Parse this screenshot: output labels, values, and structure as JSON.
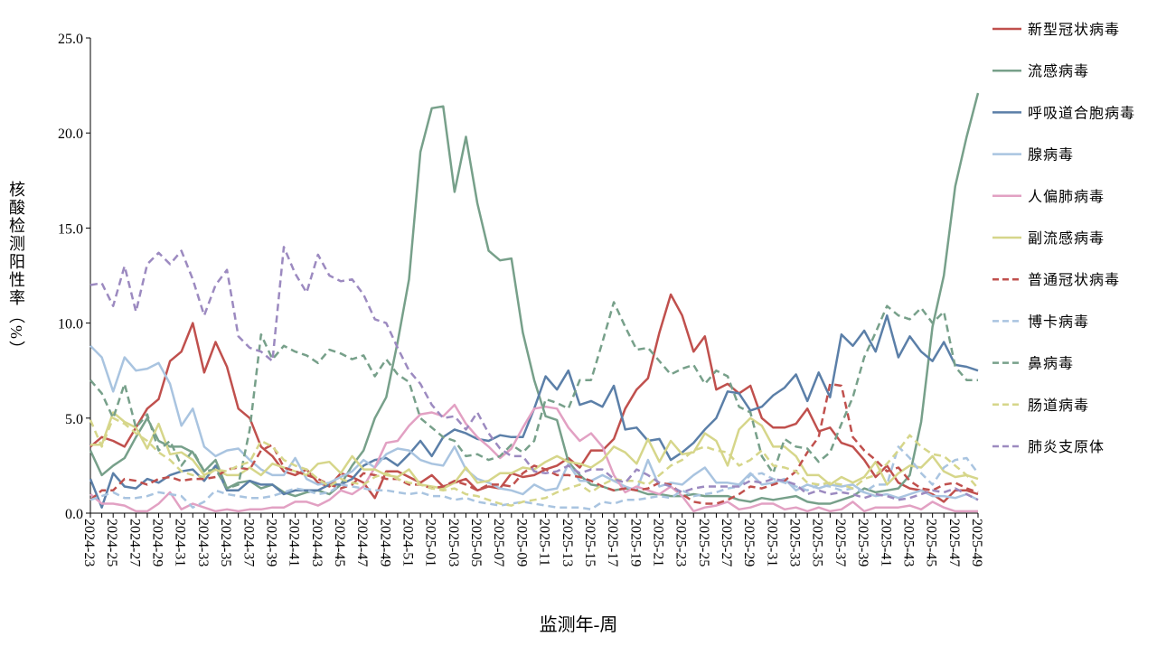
{
  "chart_data": {
    "type": "line",
    "x_label": "监测年-周",
    "y_label": "核酸检测阳性率（%）",
    "categories": [
      "2024-23",
      null,
      "2024-25",
      null,
      "2024-27",
      null,
      "2024-29",
      null,
      "2024-31",
      null,
      "2024-33",
      null,
      "2024-35",
      null,
      "2024-37",
      null,
      "2024-39",
      null,
      "2024-41",
      null,
      "2024-43",
      null,
      "2024-45",
      null,
      "2024-47",
      null,
      "2024-49",
      null,
      "2024-51",
      null,
      "2025-01",
      null,
      "2025-03",
      null,
      "2025-05",
      null,
      "2025-07",
      null,
      "2025-09",
      null,
      "2025-11",
      null,
      "2025-13",
      null,
      "2025-15",
      null,
      "2025-17",
      null,
      "2025-19",
      null,
      "2025-21",
      null,
      "2025-23",
      null,
      "2025-25",
      null,
      "2025-27",
      null,
      "2025-29",
      null,
      "2025-31",
      null,
      "2025-33",
      null,
      "2025-35",
      null,
      "2025-37",
      null,
      "2025-39",
      null,
      "2025-41",
      null,
      "2025-43",
      null,
      "2025-45",
      null,
      "2025-47",
      null,
      "2025-49"
    ],
    "ylim": [
      0,
      25
    ],
    "yticks": [
      {
        "value": 0,
        "label": "0.0"
      },
      {
        "value": 5,
        "label": "5.0"
      },
      {
        "value": 10,
        "label": "10.0"
      },
      {
        "value": 15,
        "label": "15.0"
      },
      {
        "value": 20,
        "label": "20.0"
      },
      {
        "value": 25,
        "label": "25.0"
      }
    ],
    "legend": "right",
    "series": [
      {
        "name": "新型冠状病毒",
        "color": "#c0504d",
        "dashed": false,
        "values": [
          3.5,
          4,
          3.8,
          3.5,
          4.5,
          5.5,
          6,
          8,
          8.5,
          10,
          7.4,
          9,
          7.7,
          5.5,
          5,
          3.5,
          3,
          2.2,
          2,
          2.3,
          1.6,
          1.4,
          2.1,
          1.9,
          1.6,
          0.8,
          2.2,
          2.2,
          1.9,
          1.6,
          2,
          1.4,
          1.6,
          1.8,
          1.2,
          1.4,
          1.3,
          2.1,
          1.9,
          2,
          2.3,
          2.5,
          2.9,
          2.4,
          3.3,
          3.3,
          3.9,
          5.5,
          6.5,
          7.1,
          9.5,
          11.5,
          10.4,
          8.5,
          9.3,
          6.5,
          6.8,
          6.3,
          6.7,
          5,
          4.5,
          4.5,
          4.7,
          5.5,
          4.3,
          4.5,
          3.7,
          3.5,
          2.8,
          1.9,
          2.5,
          1.6,
          1.3,
          1.2,
          1,
          0.6,
          1.2,
          1.2,
          1
        ]
      },
      {
        "name": "流感病毒",
        "color": "#77a08a",
        "dashed": false,
        "values": [
          3.3,
          2,
          2.5,
          2.9,
          4,
          5,
          3.8,
          3.5,
          3.5,
          3.2,
          2.2,
          2.8,
          1.3,
          1.6,
          1.7,
          1.3,
          1.5,
          1.1,
          0.9,
          1.1,
          1.2,
          1,
          1.5,
          2.5,
          3.3,
          5,
          6.1,
          9,
          12.3,
          19,
          21.3,
          21.4,
          16.9,
          19.8,
          16.3,
          13.8,
          13.3,
          13.4,
          9.5,
          7,
          5.1,
          4.9,
          2.7,
          2,
          1.5,
          1.4,
          1.2,
          1.3,
          1.2,
          1,
          1,
          0.9,
          0.9,
          1,
          0.9,
          0.9,
          0.9,
          0.7,
          0.6,
          0.8,
          0.7,
          0.8,
          0.9,
          0.6,
          0.5,
          0.5,
          0.7,
          0.9,
          1.3,
          1.1,
          1.2,
          1.3,
          2,
          4.8,
          9.8,
          12.5,
          17.2,
          19.8,
          22.1
        ]
      },
      {
        "name": "呼吸道合胞病毒",
        "color": "#5b7fa8",
        "dashed": false,
        "values": [
          1.8,
          0.3,
          2.1,
          1.4,
          1.3,
          1.8,
          1.6,
          2,
          2.2,
          2.3,
          1.7,
          2.5,
          1.2,
          1.2,
          1.7,
          1.5,
          1.5,
          1,
          1.2,
          1.2,
          1.2,
          1.5,
          1.5,
          1.8,
          2.5,
          2.8,
          2.9,
          2.5,
          3.1,
          3.8,
          3,
          4,
          4.4,
          4.2,
          3.9,
          3.8,
          4.1,
          4,
          4,
          5.5,
          7.2,
          6.5,
          7.5,
          5.7,
          5.9,
          5.6,
          6.7,
          4.4,
          4.5,
          3.8,
          3.9,
          2.8,
          3.2,
          3.7,
          4.4,
          5,
          6.4,
          6.3,
          5.4,
          5.6,
          6.2,
          6.6,
          7.3,
          5.9,
          7.4,
          6.1,
          9.4,
          8.8,
          9.6,
          8.5,
          10.4,
          8.2,
          9.3,
          8.5,
          8,
          9,
          7.8,
          7.7,
          7.5
        ]
      },
      {
        "name": "腺病毒",
        "color": "#a9c4e0",
        "dashed": false,
        "values": [
          8.8,
          8.2,
          6.4,
          8.2,
          7.5,
          7.6,
          7.9,
          6.8,
          4.6,
          5.5,
          3.5,
          3,
          3.3,
          3.4,
          2.8,
          2.3,
          2,
          2,
          2.9,
          1.8,
          1.5,
          1.6,
          1.9,
          2.2,
          2.8,
          2.4,
          3.1,
          3.4,
          3.3,
          2.8,
          2.6,
          2.5,
          3.5,
          2.3,
          1.8,
          1.6,
          1.3,
          1.2,
          1,
          1.5,
          1.2,
          1.3,
          2.6,
          1.7,
          1.7,
          2,
          1.7,
          1.4,
          1.2,
          2.8,
          1.4,
          1.6,
          1.5,
          2,
          2.4,
          1.6,
          1.6,
          1.5,
          2.1,
          1.5,
          1.6,
          1.8,
          1.2,
          1.5,
          1.3,
          1.5,
          1.4,
          1.5,
          1.1,
          0.9,
          1,
          0.8,
          1,
          1.2,
          0.9,
          0.9,
          0.8,
          1,
          0.7
        ]
      },
      {
        "name": "人偏肺病毒",
        "color": "#e2a1c3",
        "dashed": false,
        "values": [
          1,
          0.5,
          0.5,
          0.4,
          0.1,
          0.1,
          0.5,
          1.1,
          0.2,
          0.5,
          0.3,
          0.1,
          0.2,
          0.1,
          0.2,
          0.2,
          0.3,
          0.3,
          0.6,
          0.6,
          0.4,
          0.7,
          1.2,
          1,
          1.4,
          2.4,
          3.7,
          3.8,
          4.6,
          5.2,
          5.3,
          5.1,
          5.7,
          4.7,
          4,
          3.5,
          2.9,
          3.4,
          4.5,
          5.5,
          5.6,
          5.5,
          4.5,
          3.8,
          4.2,
          3.5,
          2,
          1.1,
          1.4,
          1.2,
          1,
          1.4,
          0.9,
          0.1,
          0.3,
          0.4,
          0.6,
          0.2,
          0.3,
          0.5,
          0.5,
          0.2,
          0.3,
          0.1,
          0.3,
          0.1,
          0.2,
          0.6,
          0.1,
          0.3,
          0.3,
          0.3,
          0.4,
          0.2,
          0.6,
          0.3,
          0.1,
          0.1,
          0.1
        ]
      },
      {
        "name": "副流感病毒",
        "color": "#d6d68a",
        "dashed": false,
        "values": [
          3.6,
          3.6,
          5.3,
          4.8,
          4.5,
          3.4,
          4.7,
          3.1,
          3.2,
          2.8,
          2,
          2.3,
          2,
          2,
          2.4,
          2,
          2.6,
          2.4,
          2.2,
          2,
          2.6,
          2.7,
          2.1,
          3,
          2.3,
          2.3,
          2,
          1.9,
          2.3,
          1.5,
          1.4,
          1.3,
          1.6,
          2.4,
          1.6,
          1.7,
          2.1,
          2.1,
          2.4,
          2.3,
          2.7,
          3,
          2.7,
          2.6,
          2.4,
          2.8,
          3.5,
          3.2,
          2.6,
          3.9,
          2.7,
          3.8,
          3.1,
          3.2,
          4.2,
          3.8,
          2.5,
          4.4,
          5,
          4.6,
          3.5,
          3.5,
          3,
          2,
          2,
          1.5,
          1.9,
          1.6,
          1.9,
          2.7,
          1.5,
          2.1,
          2.5,
          2.4,
          3,
          2.2,
          1.9,
          2,
          1.8
        ]
      },
      {
        "name": "普通冠状病毒",
        "color": "#c0504d",
        "dashed": true,
        "values": [
          0.7,
          1.2,
          1.2,
          1.8,
          1.7,
          1.5,
          1.8,
          1.9,
          1.7,
          1.8,
          1.8,
          1.9,
          2.3,
          2.4,
          2.3,
          3.3,
          3.6,
          2.4,
          2.2,
          2,
          1.8,
          1.5,
          1.3,
          1.5,
          2.1,
          2,
          1.8,
          1.8,
          1.5,
          1.5,
          1.3,
          1.4,
          1.7,
          1.5,
          1.2,
          1.5,
          1.5,
          1.4,
          2.1,
          2.5,
          2.3,
          2,
          2,
          1.9,
          1.7,
          1.4,
          1.2,
          1.3,
          1.2,
          1.3,
          1.6,
          1.5,
          1,
          0.6,
          0.5,
          0.5,
          0.7,
          1,
          1.4,
          1.3,
          1.5,
          1.7,
          2.2,
          3.2,
          4,
          6.8,
          6.7,
          4,
          3.3,
          2.8,
          2.2,
          2.4,
          1.7,
          1.3,
          1.2,
          1.5,
          1.6,
          1.3,
          1.1
        ]
      },
      {
        "name": "博卡病毒",
        "color": "#a9c4e0",
        "dashed": true,
        "values": [
          0.7,
          0.9,
          1.1,
          0.8,
          0.8,
          0.9,
          1.1,
          1,
          0.9,
          0.3,
          0.6,
          1.2,
          1,
          0.9,
          0.8,
          0.8,
          0.9,
          1.1,
          1.3,
          1.2,
          1,
          1.1,
          1.5,
          1.4,
          1.3,
          1.2,
          1.2,
          1.1,
          1,
          1.1,
          0.9,
          0.9,
          0.7,
          0.8,
          0.6,
          0.5,
          0.4,
          0.5,
          0.6,
          0.5,
          0.4,
          0.3,
          0.3,
          0.3,
          0.2,
          0.6,
          0.5,
          0.7,
          0.7,
          0.8,
          0.9,
          0.8,
          1.2,
          0.9,
          1,
          1.1,
          1.3,
          1.4,
          2,
          2.1,
          1.8,
          1.6,
          1.4,
          1.2,
          1.5,
          1.4,
          1.2,
          1.3,
          1.1,
          1.5,
          1.5,
          3.5,
          2.9,
          2.1,
          1.5,
          2.4,
          2.8,
          2.9,
          2.1
        ]
      },
      {
        "name": "鼻病毒",
        "color": "#77a08a",
        "dashed": true,
        "values": [
          7,
          6.3,
          5,
          6.8,
          4.5,
          5.2,
          3.3,
          3.8,
          2.5,
          3.3,
          2.2,
          2.3,
          1.3,
          1.5,
          4.4,
          9.4,
          8.1,
          8.8,
          8.5,
          8.3,
          7.9,
          8.6,
          8.4,
          8.1,
          8.3,
          7.2,
          8.1,
          7.3,
          6.9,
          5,
          4.5,
          4,
          3.8,
          3,
          3.1,
          2.8,
          3,
          3.6,
          3.2,
          3.8,
          6,
          5.8,
          5.5,
          7,
          7,
          9,
          11.1,
          9.8,
          8.6,
          8.7,
          8,
          7.3,
          7.6,
          7.8,
          6.8,
          7.5,
          7.2,
          5.6,
          5.3,
          3,
          2.1,
          3.9,
          3.5,
          3.4,
          2.7,
          3.2,
          4.7,
          6.1,
          8.2,
          9.5,
          10.9,
          10.4,
          10.2,
          10.8,
          10,
          10.6,
          7.7,
          7,
          7
        ]
      },
      {
        "name": "肠道病毒",
        "color": "#d6d68a",
        "dashed": true,
        "values": [
          4.9,
          3.5,
          5,
          4.7,
          4.2,
          3.8,
          3.2,
          2.8,
          2.2,
          2,
          1.9,
          2.3,
          2.2,
          2.5,
          2.7,
          3.8,
          3.5,
          2.8,
          2.5,
          2.3,
          1.8,
          1.4,
          1.8,
          1.6,
          1.5,
          1.9,
          2.1,
          1.8,
          1.6,
          1.5,
          1.3,
          1.2,
          1.3,
          1,
          0.9,
          0.7,
          0.5,
          0.4,
          0.6,
          0.7,
          0.8,
          1.1,
          1.3,
          1.5,
          1.1,
          1.5,
          1.8,
          1.7,
          1.7,
          1.5,
          2,
          2.5,
          2.8,
          3.3,
          3.5,
          3.3,
          3.2,
          2.5,
          2.8,
          3.3,
          2.5,
          2.4,
          2.2,
          1.6,
          1.5,
          1.6,
          1.5,
          1.3,
          1.8,
          2,
          2.6,
          3.3,
          4.1,
          3.5,
          3.1,
          3,
          2.5,
          2,
          1.3
        ]
      },
      {
        "name": "肺炎支原体",
        "color": "#9c8ac0",
        "dashed": true,
        "values": [
          12,
          12.1,
          10.9,
          13,
          10.6,
          13.1,
          13.7,
          13.1,
          13.8,
          12.3,
          10.4,
          12,
          12.8,
          9.3,
          8.7,
          8.5,
          8,
          14,
          12.6,
          11.6,
          13.6,
          12.5,
          12.2,
          12.3,
          11.5,
          10.2,
          10,
          8.7,
          7.5,
          6.8,
          5.7,
          5,
          5.1,
          4.4,
          5.3,
          4.2,
          3.4,
          3,
          3,
          2.2,
          2.1,
          2.2,
          2.5,
          2.1,
          2.3,
          2.3,
          1.8,
          1.6,
          2.3,
          2,
          1.6,
          1.4,
          1.1,
          1.3,
          1.4,
          1.4,
          1.4,
          1.4,
          1.7,
          1.6,
          1.8,
          1.7,
          1.5,
          1,
          1.2,
          1,
          1.1,
          1,
          0.8,
          1,
          0.9,
          0.7,
          0.8,
          1,
          1.2,
          1.1,
          1.3,
          1,
          0.7
        ]
      }
    ]
  }
}
